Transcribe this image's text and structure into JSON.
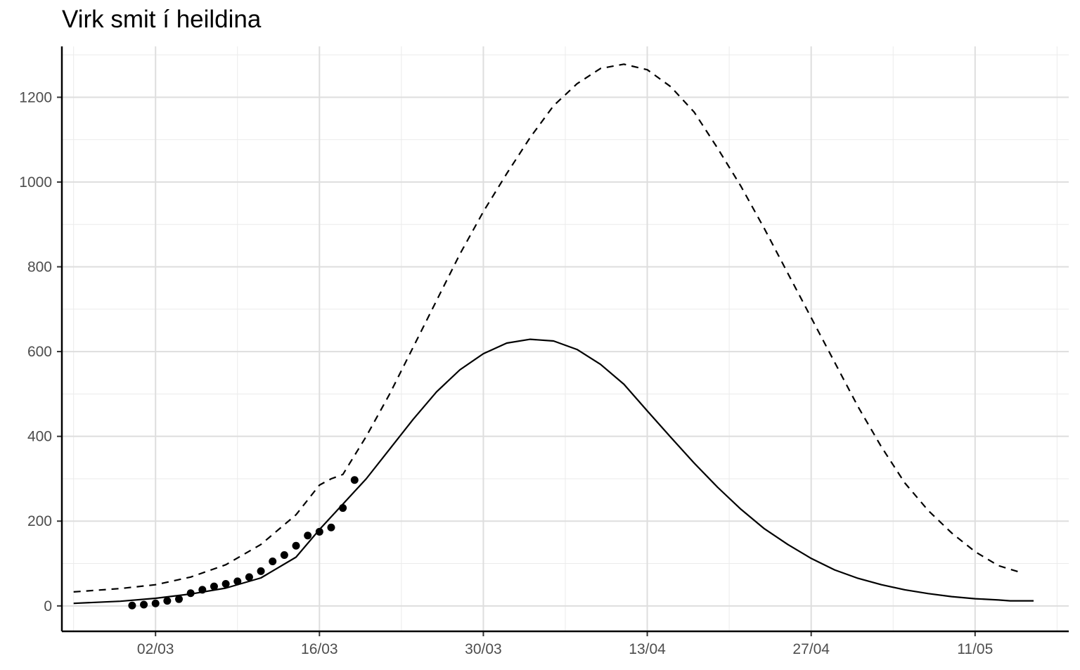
{
  "chart_data": {
    "type": "line",
    "title": "Virk smit í heildina",
    "xlabel": "",
    "ylabel": "",
    "x_axis": {
      "type": "date",
      "year": 2020,
      "range": [
        "2020-02-23",
        "2020-05-19"
      ],
      "major_ticks": [
        "2020-03-02",
        "2020-03-16",
        "2020-03-30",
        "2020-04-13",
        "2020-04-27",
        "2020-05-11"
      ],
      "tick_labels": [
        "02/03",
        "16/03",
        "30/03",
        "13/04",
        "27/04",
        "11/05"
      ]
    },
    "y_axis": {
      "range": [
        -60,
        1320
      ],
      "ticks": [
        0,
        200,
        400,
        600,
        800,
        1000,
        1200
      ],
      "tick_labels": [
        "0",
        "200",
        "400",
        "600",
        "800",
        "1000",
        "1200"
      ]
    },
    "grid": true,
    "legend": "none",
    "series": [
      {
        "style": "solid",
        "color": "#000000",
        "points": [
          [
            "2020-02-24",
            6
          ],
          [
            "2020-02-28",
            11
          ],
          [
            "2020-03-02",
            18
          ],
          [
            "2020-03-05",
            28
          ],
          [
            "2020-03-08",
            42
          ],
          [
            "2020-03-11",
            66
          ],
          [
            "2020-03-14",
            115
          ],
          [
            "2020-03-16",
            180
          ],
          [
            "2020-03-18",
            240
          ],
          [
            "2020-03-20",
            300
          ],
          [
            "2020-03-22",
            370
          ],
          [
            "2020-03-24",
            440
          ],
          [
            "2020-03-26",
            505
          ],
          [
            "2020-03-28",
            557
          ],
          [
            "2020-03-30",
            595
          ],
          [
            "2020-04-01",
            620
          ],
          [
            "2020-04-03",
            629
          ],
          [
            "2020-04-05",
            625
          ],
          [
            "2020-04-07",
            605
          ],
          [
            "2020-04-09",
            570
          ],
          [
            "2020-04-11",
            523
          ],
          [
            "2020-04-13",
            460
          ],
          [
            "2020-04-15",
            398
          ],
          [
            "2020-04-17",
            337
          ],
          [
            "2020-04-19",
            280
          ],
          [
            "2020-04-21",
            228
          ],
          [
            "2020-04-23",
            182
          ],
          [
            "2020-04-25",
            145
          ],
          [
            "2020-04-27",
            112
          ],
          [
            "2020-04-29",
            85
          ],
          [
            "2020-05-01",
            65
          ],
          [
            "2020-05-03",
            50
          ],
          [
            "2020-05-05",
            38
          ],
          [
            "2020-05-07",
            29
          ],
          [
            "2020-05-09",
            22
          ],
          [
            "2020-05-11",
            17
          ],
          [
            "2020-05-13",
            14
          ],
          [
            "2020-05-14",
            12
          ],
          [
            "2020-05-16",
            12
          ]
        ]
      },
      {
        "style": "dashed",
        "color": "#000000",
        "points": [
          [
            "2020-02-24",
            33
          ],
          [
            "2020-02-28",
            41
          ],
          [
            "2020-03-02",
            50
          ],
          [
            "2020-03-05",
            68
          ],
          [
            "2020-03-08",
            97
          ],
          [
            "2020-03-11",
            145
          ],
          [
            "2020-03-14",
            215
          ],
          [
            "2020-03-16",
            285
          ],
          [
            "2020-03-17",
            300
          ],
          [
            "2020-03-18",
            310
          ],
          [
            "2020-03-20",
            400
          ],
          [
            "2020-03-22",
            500
          ],
          [
            "2020-03-24",
            610
          ],
          [
            "2020-03-26",
            720
          ],
          [
            "2020-03-28",
            830
          ],
          [
            "2020-03-30",
            930
          ],
          [
            "2020-04-01",
            1020
          ],
          [
            "2020-04-03",
            1105
          ],
          [
            "2020-04-05",
            1180
          ],
          [
            "2020-04-07",
            1232
          ],
          [
            "2020-04-09",
            1268
          ],
          [
            "2020-04-11",
            1278
          ],
          [
            "2020-04-13",
            1265
          ],
          [
            "2020-04-15",
            1225
          ],
          [
            "2020-04-17",
            1165
          ],
          [
            "2020-04-19",
            1080
          ],
          [
            "2020-04-21",
            990
          ],
          [
            "2020-04-23",
            890
          ],
          [
            "2020-04-25",
            785
          ],
          [
            "2020-04-27",
            680
          ],
          [
            "2020-04-29",
            575
          ],
          [
            "2020-05-01",
            470
          ],
          [
            "2020-05-03",
            375
          ],
          [
            "2020-05-05",
            290
          ],
          [
            "2020-05-07",
            225
          ],
          [
            "2020-05-09",
            172
          ],
          [
            "2020-05-11",
            128
          ],
          [
            "2020-05-13",
            95
          ],
          [
            "2020-05-15",
            78
          ]
        ]
      },
      {
        "style": "points",
        "color": "#000000",
        "points": [
          [
            "2020-02-29",
            1
          ],
          [
            "2020-03-01",
            3
          ],
          [
            "2020-03-02",
            6
          ],
          [
            "2020-03-03",
            12
          ],
          [
            "2020-03-04",
            16
          ],
          [
            "2020-03-05",
            30
          ],
          [
            "2020-03-06",
            38
          ],
          [
            "2020-03-07",
            46
          ],
          [
            "2020-03-08",
            52
          ],
          [
            "2020-03-09",
            58
          ],
          [
            "2020-03-10",
            68
          ],
          [
            "2020-03-11",
            82
          ],
          [
            "2020-03-12",
            105
          ],
          [
            "2020-03-13",
            120
          ],
          [
            "2020-03-14",
            142
          ],
          [
            "2020-03-15",
            166
          ],
          [
            "2020-03-16",
            175
          ],
          [
            "2020-03-17",
            185
          ],
          [
            "2020-03-18",
            231
          ],
          [
            "2020-03-19",
            297
          ]
        ]
      }
    ]
  }
}
